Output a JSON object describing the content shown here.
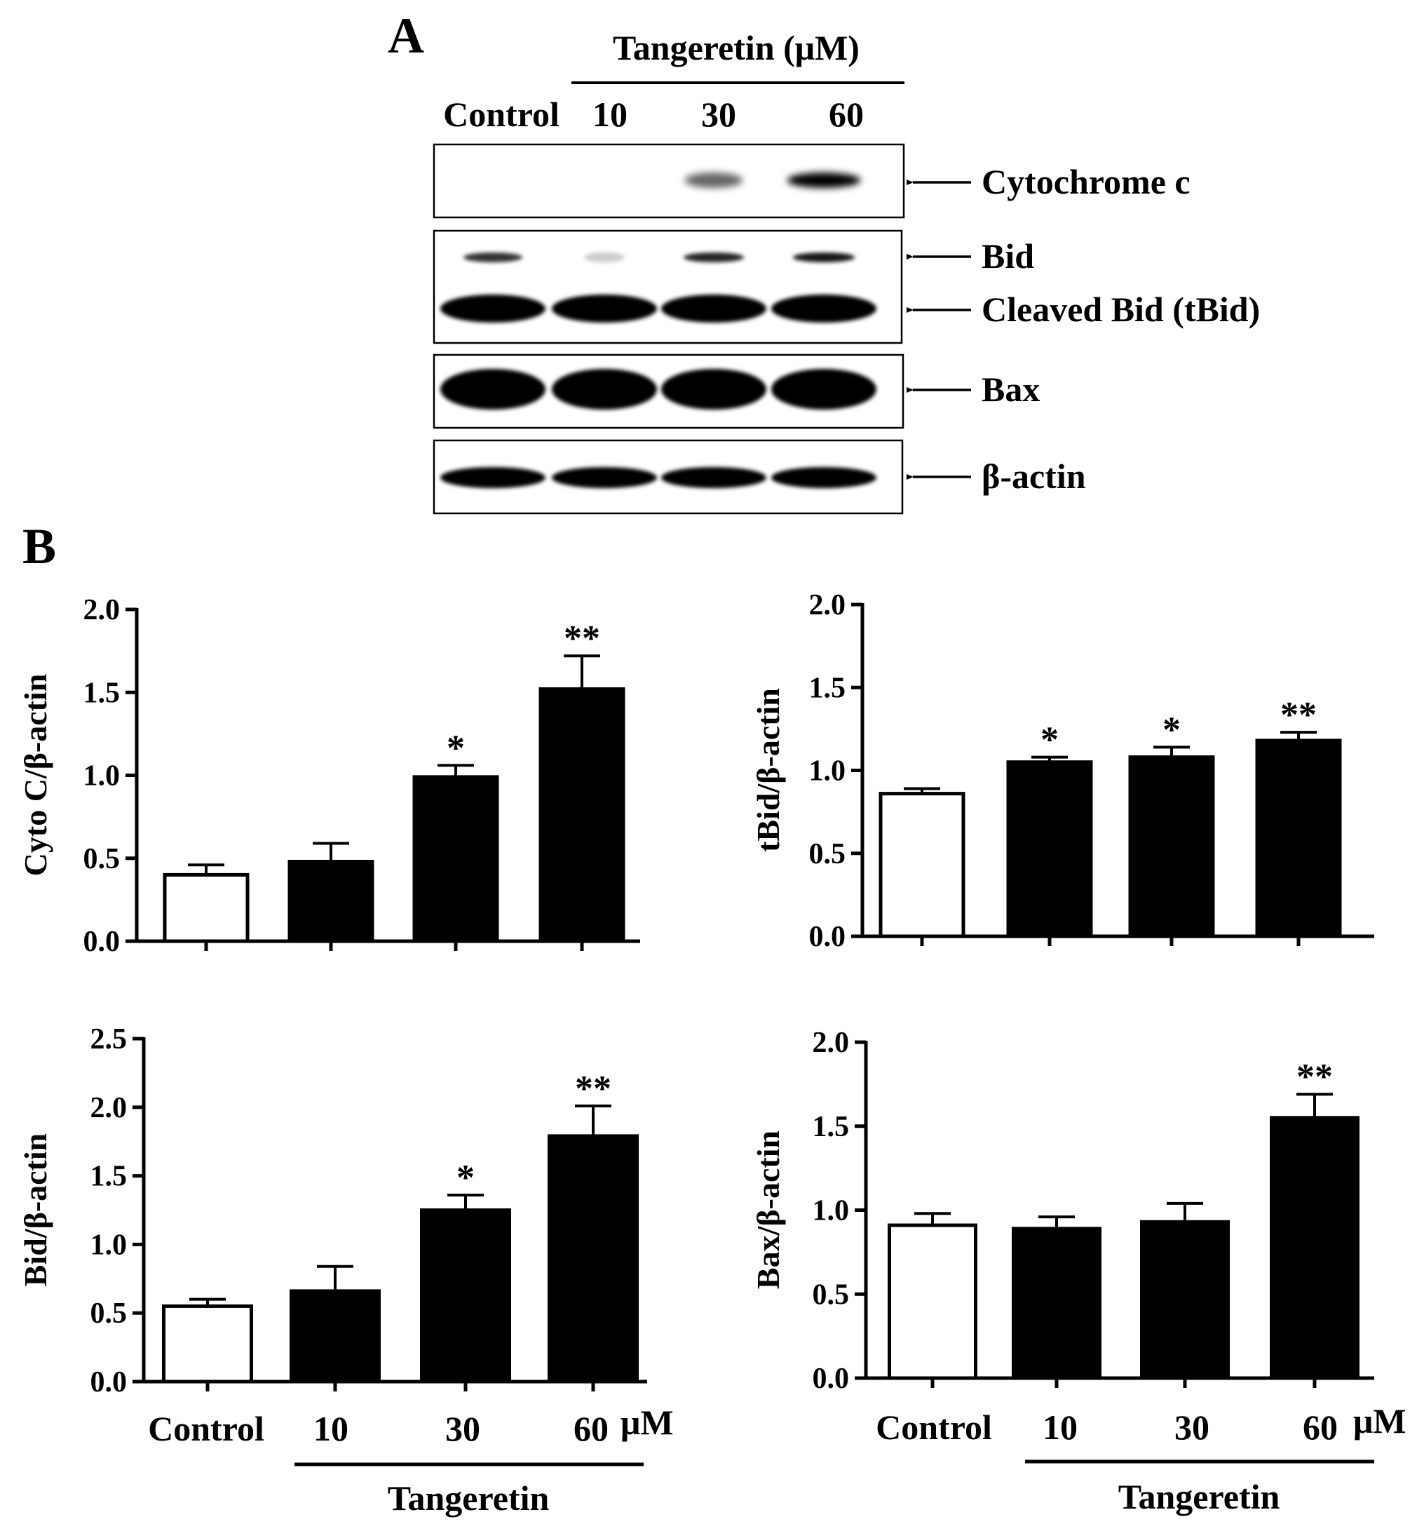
{
  "panel_a": {
    "label": "A",
    "treatment_header": "Tangeretin (μM)",
    "lanes": [
      "Control",
      "10",
      "30",
      "60"
    ],
    "band_labels": [
      "Cytochrome c",
      "Bid",
      "Cleaved Bid (tBid)",
      "Bax",
      "β-actin"
    ],
    "blots": [
      {
        "name": "cytochrome-c",
        "rows": [
          {
            "intensity": [
              0,
              0,
              0.45,
              0.9
            ]
          }
        ]
      },
      {
        "name": "bid",
        "rows": [
          {
            "intensity": [
              0.65,
              0.05,
              0.7,
              0.75
            ]
          },
          {
            "intensity": [
              1,
              1,
              1,
              1
            ]
          }
        ]
      },
      {
        "name": "bax",
        "rows": [
          {
            "intensity": [
              1,
              1,
              1,
              1
            ]
          }
        ]
      },
      {
        "name": "beta-actin",
        "rows": [
          {
            "intensity": [
              1,
              1,
              1,
              1
            ]
          }
        ]
      }
    ]
  },
  "panel_b": {
    "label": "B",
    "x_labels": [
      "Control",
      "10",
      "30",
      "60"
    ],
    "unit": "μM",
    "group_label": "Tangeretin"
  },
  "colors": {
    "ink": "#000000",
    "control_fill": "#ffffff",
    "treated_fill": "#000000"
  },
  "chart_data": [
    {
      "type": "bar",
      "ylabel": "Cyto C/β-actin",
      "categories": [
        "Control",
        "10",
        "30",
        "60"
      ],
      "values": [
        0.4,
        0.48,
        0.99,
        1.52
      ],
      "errors": [
        0.06,
        0.11,
        0.07,
        0.2
      ],
      "significance": [
        "",
        "",
        "*",
        "**"
      ],
      "ylim": [
        0,
        2.0
      ],
      "yticks": [
        "0.0",
        "0.5",
        "1.0",
        "1.5",
        "2.0"
      ]
    },
    {
      "type": "bar",
      "ylabel": "tBid/β-actin",
      "categories": [
        "Control",
        "10",
        "30",
        "60"
      ],
      "values": [
        0.86,
        1.05,
        1.08,
        1.18
      ],
      "errors": [
        0.03,
        0.03,
        0.06,
        0.05
      ],
      "significance": [
        "",
        "*",
        "*",
        "**"
      ],
      "ylim": [
        0,
        2.0
      ],
      "yticks": [
        "0.0",
        "0.5",
        "1.0",
        "1.5",
        "2.0"
      ]
    },
    {
      "type": "bar",
      "ylabel": "Bid/β-actin",
      "categories": [
        "Control",
        "10",
        "30",
        "60"
      ],
      "values": [
        0.55,
        0.66,
        1.25,
        1.79
      ],
      "errors": [
        0.05,
        0.18,
        0.11,
        0.22
      ],
      "significance": [
        "",
        "",
        "*",
        "**"
      ],
      "ylim": [
        0,
        2.5
      ],
      "yticks": [
        "0.0",
        "0.5",
        "1.0",
        "1.5",
        "2.0",
        "2.5"
      ]
    },
    {
      "type": "bar",
      "ylabel": "Bax/β-actin",
      "categories": [
        "Control",
        "10",
        "30",
        "60"
      ],
      "values": [
        0.91,
        0.89,
        0.93,
        1.55
      ],
      "errors": [
        0.07,
        0.07,
        0.11,
        0.14
      ],
      "significance": [
        "",
        "",
        "",
        "**"
      ],
      "ylim": [
        0,
        2.0
      ],
      "yticks": [
        "0.0",
        "0.5",
        "1.0",
        "1.5",
        "2.0"
      ]
    }
  ]
}
